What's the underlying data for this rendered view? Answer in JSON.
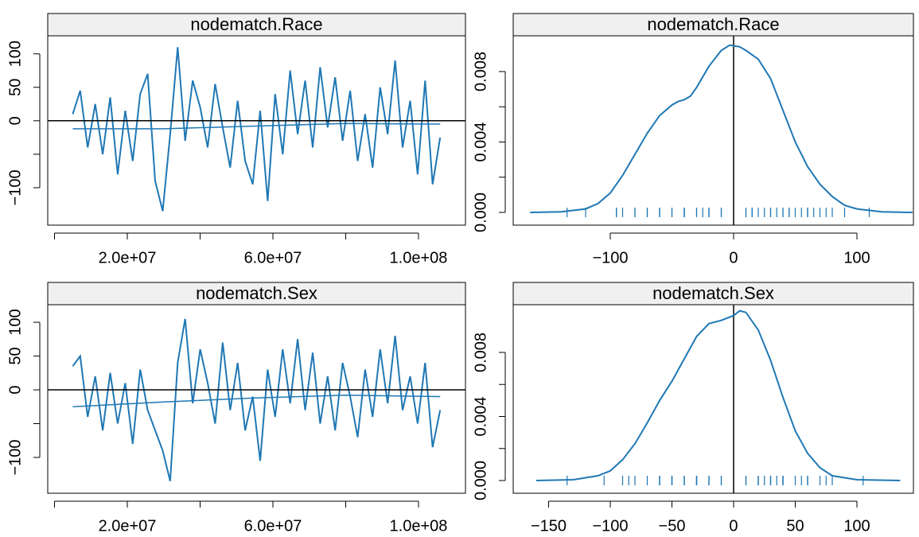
{
  "chart_data": [
    {
      "type": "trace",
      "title": "nodematch.Race",
      "color": "#1F78B4",
      "x": [
        5000000,
        7060000,
        9120000,
        11180000,
        13240000,
        15300000,
        17360000,
        19420000,
        21480000,
        23540000,
        25600000,
        27660000,
        29720000,
        31780000,
        33840000,
        35900000,
        37960000,
        40020000,
        42080000,
        44140000,
        46200000,
        48260000,
        50320000,
        52380000,
        54440000,
        56500000,
        58560000,
        60620000,
        62680000,
        64740000,
        66800000,
        68860000,
        70920000,
        72980000,
        75040000,
        77100000,
        79160000,
        81220000,
        83280000,
        85340000,
        87400000,
        89460000,
        91520000,
        93580000,
        95640000,
        97700000,
        99760000,
        101820000,
        103880000,
        105940000
      ],
      "values": [
        10,
        45,
        -40,
        25,
        -50,
        35,
        -80,
        15,
        -60,
        40,
        70,
        -90,
        -135,
        -20,
        110,
        -30,
        60,
        20,
        -40,
        55,
        -10,
        -70,
        30,
        -60,
        -95,
        15,
        -120,
        40,
        -50,
        75,
        -20,
        60,
        -40,
        80,
        -10,
        65,
        -30,
        45,
        -60,
        10,
        -70,
        50,
        -20,
        90,
        -40,
        30,
        -80,
        60,
        -95,
        -25
      ],
      "smooth": {
        "x": [
          5000000,
          30000000,
          55000000,
          80000000,
          105940000
        ],
        "values": [
          -12,
          -12,
          -8,
          -4,
          -5
        ]
      },
      "hline": 0,
      "xlim": [
        -1860000,
        112900000
      ],
      "xticks": [
        {
          "value": 20000000,
          "label": "2.0e+07"
        },
        {
          "value": 60000000,
          "label": "6.0e+07"
        },
        {
          "value": 100000000,
          "label": "1.0e+08"
        }
      ],
      "xminorticks": [
        0,
        40000000,
        80000000
      ],
      "ylim": [
        -156,
        127
      ],
      "yticks": [
        {
          "value": -100,
          "label": "−100"
        },
        0,
        50,
        100
      ],
      "yminorticks": [
        -50
      ]
    },
    {
      "type": "density",
      "title": "nodematch.Race",
      "color": "#1F78B4",
      "x": [
        -165,
        -140,
        -120,
        -110,
        -100,
        -90,
        -80,
        -70,
        -60,
        -50,
        -45,
        -40,
        -35,
        -30,
        -20,
        -10,
        -3,
        5,
        10,
        20,
        30,
        40,
        50,
        60,
        70,
        80,
        90,
        100,
        120,
        145
      ],
      "values": [
        0,
        3e-05,
        0.0002,
        0.0005,
        0.0011,
        0.0021,
        0.0033,
        0.0045,
        0.0055,
        0.0061,
        0.0063,
        0.0064,
        0.0066,
        0.0071,
        0.0083,
        0.0092,
        0.0095,
        0.0094,
        0.0092,
        0.0087,
        0.0076,
        0.0058,
        0.004,
        0.0026,
        0.0016,
        0.0009,
        0.0004,
        0.0002,
        3e-05,
        0
      ],
      "vline": 0,
      "xlim": [
        -178.7,
        145.8
      ],
      "xticks": [
        {
          "value": -100,
          "label": "−100"
        },
        0,
        100
      ],
      "ylim": [
        -0.000723,
        0.01003
      ],
      "yticks": [
        {
          "value": 0,
          "label": "0.000"
        },
        {
          "value": 0.004,
          "label": "0.004"
        },
        {
          "value": 0.008,
          "label": "0.008"
        }
      ],
      "yminorticks": [
        0.002,
        0.006
      ]
    },
    {
      "type": "trace",
      "title": "nodematch.Sex",
      "color": "#1F78B4",
      "x": [
        5000000,
        7060000,
        9120000,
        11180000,
        13240000,
        15300000,
        17360000,
        19420000,
        21480000,
        23540000,
        25600000,
        27660000,
        29720000,
        31780000,
        33840000,
        35900000,
        37960000,
        40020000,
        42080000,
        44140000,
        46200000,
        48260000,
        50320000,
        52380000,
        54440000,
        56500000,
        58560000,
        60620000,
        62680000,
        64740000,
        66800000,
        68860000,
        70920000,
        72980000,
        75040000,
        77100000,
        79160000,
        81220000,
        83280000,
        85340000,
        87400000,
        89460000,
        91520000,
        93580000,
        95640000,
        97700000,
        99760000,
        101820000,
        103880000,
        105940000
      ],
      "values": [
        35,
        50,
        -40,
        20,
        -60,
        25,
        -50,
        10,
        -80,
        30,
        -30,
        -60,
        -90,
        -135,
        40,
        105,
        -20,
        60,
        10,
        -50,
        70,
        -30,
        40,
        -60,
        -10,
        -105,
        30,
        -40,
        60,
        -20,
        75,
        -30,
        55,
        -50,
        20,
        -60,
        40,
        -10,
        -70,
        30,
        -40,
        60,
        -20,
        80,
        -30,
        20,
        -50,
        40,
        -85,
        -30
      ],
      "smooth": {
        "x": [
          5000000,
          30000000,
          55000000,
          80000000,
          105940000
        ],
        "values": [
          -25,
          -18,
          -12,
          -8,
          -10
        ]
      },
      "hline": 0,
      "xlim": [
        -1860000,
        112900000
      ],
      "xticks": [
        {
          "value": 20000000,
          "label": "2.0e+07"
        },
        {
          "value": 60000000,
          "label": "6.0e+07"
        },
        {
          "value": 100000000,
          "label": "1.0e+08"
        }
      ],
      "xminorticks": [
        0,
        40000000,
        80000000
      ],
      "ylim": [
        -153,
        126
      ],
      "yticks": [
        {
          "value": -100,
          "label": "−100"
        },
        0,
        50,
        100
      ],
      "yminorticks": [
        -50
      ]
    },
    {
      "type": "density",
      "title": "nodematch.Sex",
      "color": "#1F78B4",
      "x": [
        -160,
        -130,
        -110,
        -100,
        -90,
        -80,
        -70,
        -60,
        -50,
        -40,
        -30,
        -20,
        -10,
        0,
        5,
        10,
        20,
        30,
        40,
        50,
        60,
        70,
        80,
        100,
        135
      ],
      "values": [
        0,
        5e-05,
        0.0003,
        0.0006,
        0.0013,
        0.0023,
        0.0036,
        0.005,
        0.0062,
        0.0076,
        0.009,
        0.0098,
        0.01,
        0.0103,
        0.0106,
        0.0105,
        0.0094,
        0.0075,
        0.0052,
        0.0031,
        0.0017,
        0.0008,
        0.0003,
        5e-05,
        0
      ],
      "vline": 0,
      "xlim": [
        -178.7,
        145.8
      ],
      "xticks": [
        {
          "value": -150,
          "label": "−150"
        },
        {
          "value": -100,
          "label": "−100"
        },
        {
          "value": -50,
          "label": "−50"
        },
        0,
        50,
        100
      ],
      "ylim": [
        -0.000795,
        0.01098
      ],
      "yticks": [
        {
          "value": 0,
          "label": "0.000"
        },
        {
          "value": 0.004,
          "label": "0.004"
        },
        {
          "value": 0.008,
          "label": "0.008"
        }
      ],
      "yminorticks": [
        0.002,
        0.006
      ]
    }
  ]
}
